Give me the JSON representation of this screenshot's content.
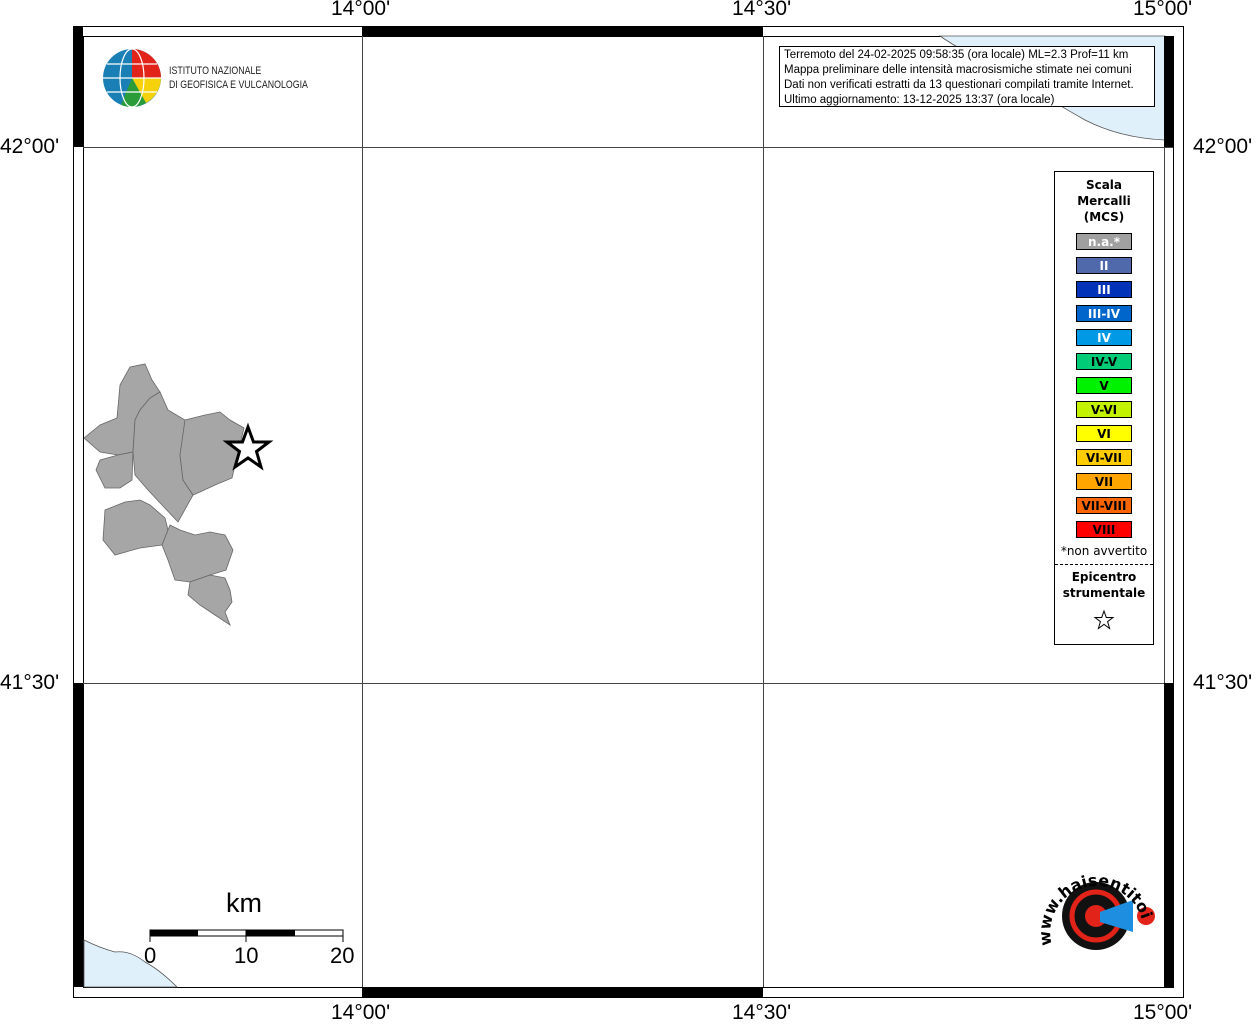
{
  "map": {
    "lon_ticks": [
      "14°00'",
      "14°30'",
      "15°00'"
    ],
    "lat_ticks": [
      "42°00'",
      "41°30'"
    ],
    "sea_color": "#dff0fb",
    "municipality_color": "#a6a6a6"
  },
  "logo": {
    "line1": "ISTITUTO NAZIONALE",
    "line2": "DI GEOFISICA E VULCANOLOGIA"
  },
  "info": {
    "line1": "Terremoto del 24-02-2025 09:58:35 (ora locale) ML=2.3 Prof=11 km",
    "line2": "Mappa preliminare delle intensità macrosismiche stimate nei comuni",
    "line3": "Dati non verificati estratti da 13 questionari compilati tramite Internet.",
    "line4": "Ultimo aggiornamento: 13-12-2025 13:37 (ora locale)"
  },
  "legend": {
    "title1": "Scala",
    "title2": "Mercalli",
    "title3": "(MCS)",
    "items": [
      {
        "label": "n.a.*",
        "color": "#a0a0a0",
        "text": "#fff"
      },
      {
        "label": "II",
        "color": "#4f69ab",
        "text": "#fff"
      },
      {
        "label": "III",
        "color": "#0033b8",
        "text": "#fff"
      },
      {
        "label": "III-IV",
        "color": "#0066cc",
        "text": "#fff"
      },
      {
        "label": "IV",
        "color": "#0099e6",
        "text": "#fff"
      },
      {
        "label": "IV-V",
        "color": "#00cc77",
        "text": "#000"
      },
      {
        "label": "V",
        "color": "#00f200",
        "text": "#000"
      },
      {
        "label": "V-VI",
        "color": "#c2f200",
        "text": "#000"
      },
      {
        "label": "VI",
        "color": "#ffff00",
        "text": "#000"
      },
      {
        "label": "VI-VII",
        "color": "#ffcc00",
        "text": "#000"
      },
      {
        "label": "VII",
        "color": "#ffa500",
        "text": "#000"
      },
      {
        "label": "VII-VIII",
        "color": "#ff6600",
        "text": "#000"
      },
      {
        "label": "VIII",
        "color": "#ff0000",
        "text": "#000"
      }
    ],
    "note": "*non avvertito",
    "epicenter1": "Epicentro",
    "epicenter2": "strumentale"
  },
  "scalebar": {
    "unit": "km",
    "labels": [
      "0",
      "10",
      "20"
    ]
  },
  "brand": {
    "text": "www.haisentitoilterremoto.it"
  }
}
